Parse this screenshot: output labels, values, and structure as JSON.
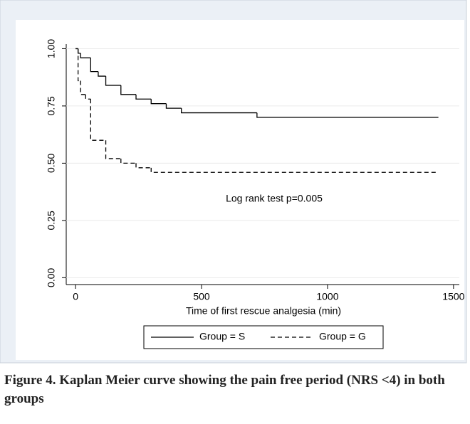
{
  "chart_data": {
    "type": "step",
    "x_label": "Time of first rescue analgesia (min)",
    "annotation": "Log rank test p=0.005",
    "caption": "Figure 4. Kaplan Meier curve showing the pain free period (NRS <4) in both groups",
    "xlim": [
      -37,
      1523
    ],
    "xticks": [
      0,
      500,
      1000,
      1500
    ],
    "ylim": [
      -0.03,
      1.02
    ],
    "yticks": [
      {
        "value": 0,
        "label": "0.00"
      },
      {
        "value": 0.25,
        "label": "0.25"
      },
      {
        "value": 0.5,
        "label": "0.50"
      },
      {
        "value": 0.75,
        "label": "0.75"
      },
      {
        "value": 1,
        "label": "1.00"
      }
    ],
    "grid": true,
    "legend": "bottom",
    "series": [
      {
        "name": "Group = S",
        "color": "#000000",
        "dash": "solid",
        "x": [
          0,
          10,
          20,
          60,
          90,
          120,
          180,
          240,
          300,
          360,
          420,
          720,
          1440
        ],
        "values": [
          1,
          0.98,
          0.96,
          0.9,
          0.88,
          0.84,
          0.8,
          0.78,
          0.76,
          0.74,
          0.72,
          0.7,
          0.7
        ]
      },
      {
        "name": "Group = G",
        "color": "#000000",
        "dash": "dashed",
        "x": [
          0,
          10,
          20,
          40,
          60,
          120,
          180,
          240,
          300,
          1440
        ],
        "values": [
          1,
          0.86,
          0.8,
          0.78,
          0.6,
          0.52,
          0.5,
          0.48,
          0.46,
          0.46
        ]
      }
    ]
  }
}
